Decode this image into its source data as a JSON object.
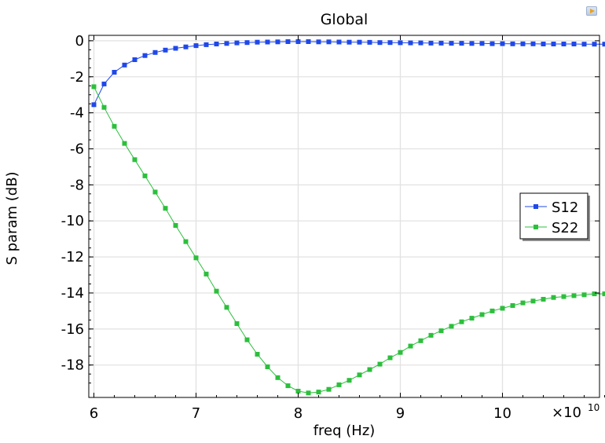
{
  "colors": {
    "S12": "#1f48ea",
    "S22": "#2cbf3c",
    "grid": "#e2e2e2",
    "axis": "#000000"
  },
  "corner_icon": "plot-settings-icon",
  "chart_data": {
    "type": "line",
    "title": "Global",
    "xlabel": "freq (Hz)",
    "ylabel": "S param (dB)",
    "x_exponent_base": "×10",
    "x_exponent_power": "10",
    "xlim": [
      5.95,
      10.95
    ],
    "ylim": [
      -19.8,
      0.3
    ],
    "xticks": [
      6,
      7,
      8,
      9,
      10
    ],
    "xtick_labels": [
      "6",
      "7",
      "8",
      "9",
      "10"
    ],
    "yticks": [
      0,
      -2,
      -4,
      -6,
      -8,
      -10,
      -12,
      -14,
      -16,
      -18
    ],
    "ytick_labels": [
      "0",
      "-2",
      "-4",
      "-6",
      "-8",
      "-10",
      "-12",
      "-14",
      "-16",
      "-18"
    ],
    "grid": true,
    "legend_position": "right",
    "x": [
      6.0,
      6.1,
      6.2,
      6.3,
      6.4,
      6.5,
      6.6,
      6.7,
      6.8,
      6.9,
      7.0,
      7.1,
      7.2,
      7.3,
      7.4,
      7.5,
      7.6,
      7.7,
      7.8,
      7.9,
      8.0,
      8.1,
      8.2,
      8.3,
      8.4,
      8.5,
      8.6,
      8.7,
      8.8,
      8.9,
      9.0,
      9.1,
      9.2,
      9.3,
      9.4,
      9.5,
      9.6,
      9.7,
      9.8,
      9.9,
      10.0,
      10.1,
      10.2,
      10.3,
      10.4,
      10.5,
      10.6,
      10.7,
      10.8,
      10.9,
      11.0
    ],
    "series": [
      {
        "name": "S12",
        "values": [
          -3.55,
          -2.4,
          -1.75,
          -1.35,
          -1.05,
          -0.82,
          -0.65,
          -0.52,
          -0.42,
          -0.34,
          -0.27,
          -0.22,
          -0.18,
          -0.15,
          -0.12,
          -0.1,
          -0.08,
          -0.07,
          -0.06,
          -0.05,
          -0.05,
          -0.05,
          -0.06,
          -0.06,
          -0.07,
          -0.08,
          -0.08,
          -0.09,
          -0.1,
          -0.1,
          -0.11,
          -0.12,
          -0.12,
          -0.13,
          -0.13,
          -0.14,
          -0.14,
          -0.15,
          -0.15,
          -0.16,
          -0.16,
          -0.17,
          -0.17,
          -0.17,
          -0.18,
          -0.18,
          -0.18,
          -0.18,
          -0.19,
          -0.19,
          -0.19
        ]
      },
      {
        "name": "S22",
        "values": [
          -2.55,
          -3.7,
          -4.75,
          -5.7,
          -6.6,
          -7.5,
          -8.4,
          -9.3,
          -10.25,
          -11.15,
          -12.05,
          -12.95,
          -13.9,
          -14.8,
          -15.7,
          -16.6,
          -17.4,
          -18.1,
          -18.7,
          -19.15,
          -19.45,
          -19.55,
          -19.5,
          -19.35,
          -19.1,
          -18.85,
          -18.55,
          -18.25,
          -17.95,
          -17.6,
          -17.3,
          -16.95,
          -16.65,
          -16.35,
          -16.1,
          -15.85,
          -15.6,
          -15.4,
          -15.2,
          -15.0,
          -14.85,
          -14.7,
          -14.55,
          -14.45,
          -14.35,
          -14.25,
          -14.2,
          -14.15,
          -14.1,
          -14.05,
          -14.05
        ]
      }
    ]
  }
}
